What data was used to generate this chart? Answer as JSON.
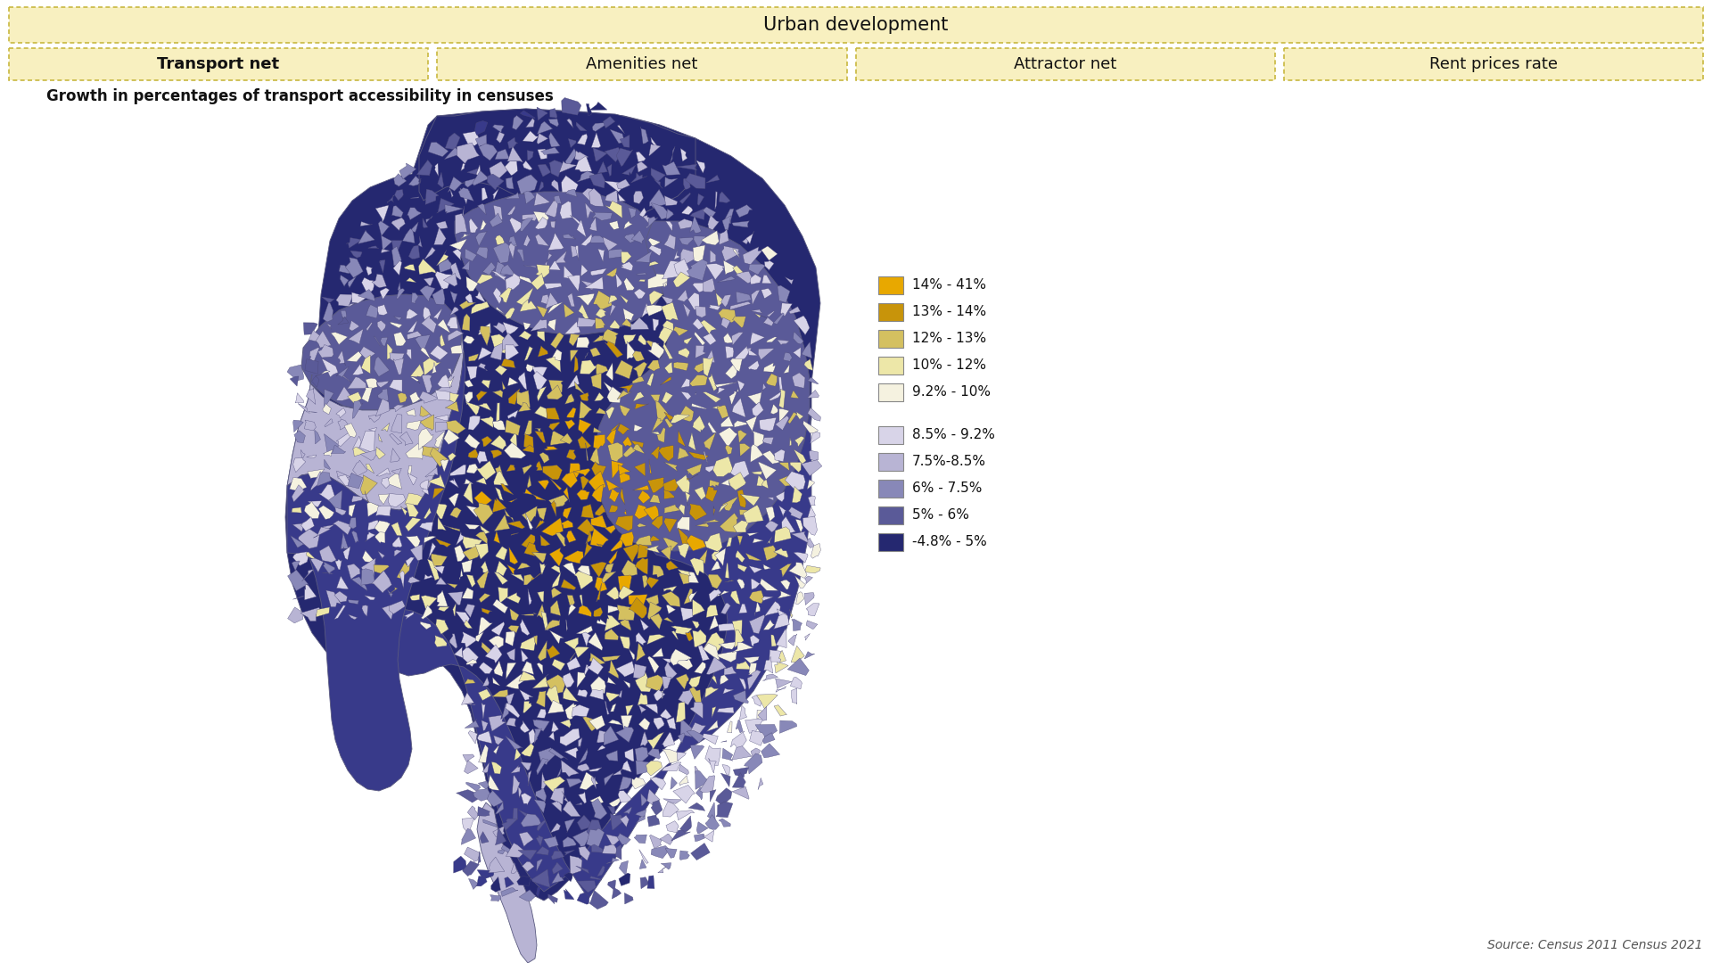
{
  "title_bar": "Urban development",
  "tabs": [
    "Transport net",
    "Amenities net",
    "Attractor net",
    "Rent prices rate"
  ],
  "active_tab": 0,
  "map_title": "Growth in percentages of transport accessibility in censuses",
  "legend_items": [
    {
      "label": "14% - 41%",
      "color": "#E8A800"
    },
    {
      "label": "13% - 14%",
      "color": "#C8940A"
    },
    {
      "label": "12% - 13%",
      "color": "#D4C060"
    },
    {
      "label": "10% - 12%",
      "color": "#EDE7A8"
    },
    {
      "label": "9.2% - 10%",
      "color": "#F5F2E0"
    },
    {
      "label": "8.5% - 9.2%",
      "color": "#D8D4E8"
    },
    {
      "label": "7.5%-8.5%",
      "color": "#B8B4D4"
    },
    {
      "label": "6% - 7.5%",
      "color": "#8888B8"
    },
    {
      "label": "5% - 6%",
      "color": "#5A5A98"
    },
    {
      "label": "-4.8% - 5%",
      "color": "#252870"
    }
  ],
  "source_text": "Source: Census 2011 Census 2021",
  "bg_color": "#FFFFFF",
  "header_bg": "#F8F0C0",
  "header_border": "#C8B840",
  "tab_bg": "#F8F0C0",
  "tab_border": "#C8B840",
  "map_colors": {
    "darkest_blue": "#252870",
    "dark_blue": "#383A8A",
    "medium_blue": "#5A5A98",
    "light_blue": "#8888B8",
    "lighter_blue": "#B8B4D4",
    "lightest_blue": "#D8D4E8",
    "near_white": "#F5F2E0",
    "pale_yellow": "#EDE7A8",
    "light_yellow": "#D4C060",
    "medium_yellow": "#C8940A",
    "gold": "#E8A800",
    "white": "#FFFFFF",
    "outline": "#5a5a80"
  }
}
